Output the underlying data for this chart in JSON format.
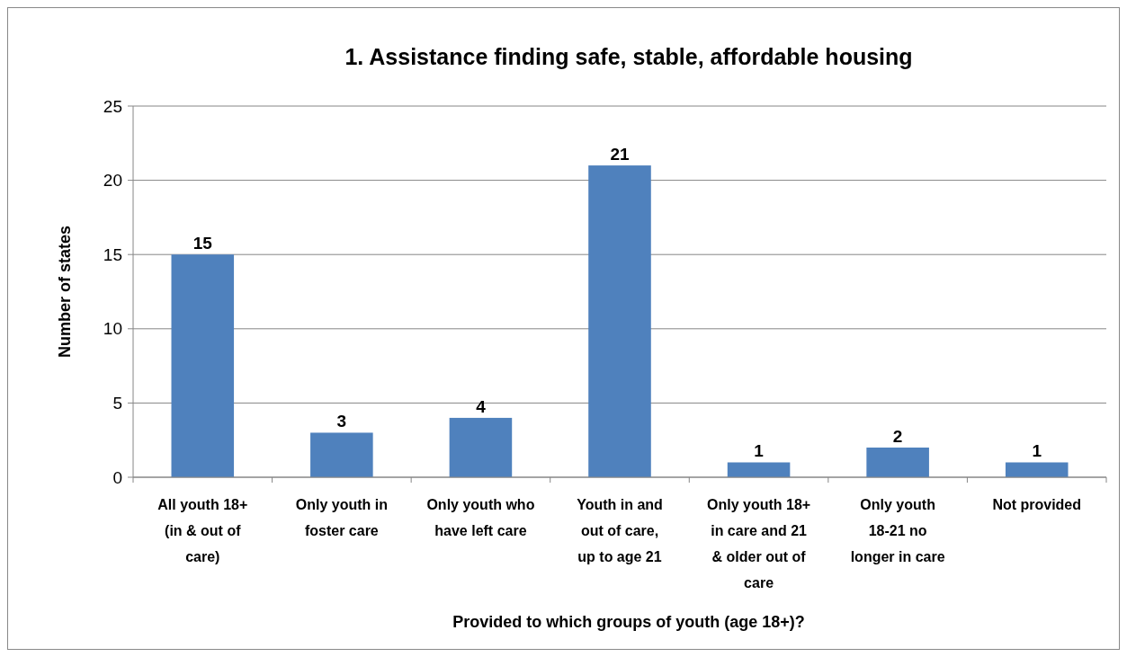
{
  "chart_data": {
    "type": "bar",
    "title": "1. Assistance finding safe, stable, affordable housing",
    "xlabel": "Provided to which groups of youth (age 18+)?",
    "ylabel": "Number of states",
    "categories": [
      "All youth 18+ (in & out of care)",
      "Only youth in foster care",
      "Only youth who have left care",
      "Youth in and out of care, up to age 21",
      "Only youth 18+ in care and 21 & older out of care",
      "Only youth 18-21 no longer in care",
      "Not provided"
    ],
    "values": [
      15,
      3,
      4,
      21,
      1,
      2,
      1
    ],
    "color": "#4f81bd",
    "ylim": [
      0,
      25
    ],
    "yticks": [
      0,
      5,
      10,
      15,
      20,
      25
    ],
    "grid": "y",
    "data_labels": true
  }
}
